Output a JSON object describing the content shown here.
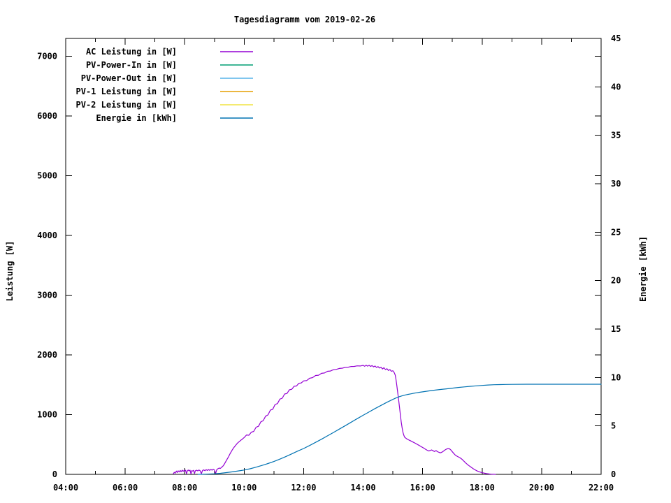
{
  "title": "Tagesdiagramm vom 2019-02-26",
  "chart_data": {
    "type": "line",
    "title": "Tagesdiagramm vom 2019-02-26",
    "grid": false,
    "background": "#ffffff",
    "legend_position": "top-left",
    "x": {
      "unit": "time-of-day",
      "range_hours": [
        4,
        22
      ],
      "major_ticks": [
        {
          "t": 4,
          "label": "04:00"
        },
        {
          "t": 6,
          "label": "06:00"
        },
        {
          "t": 8,
          "label": "08:00"
        },
        {
          "t": 10,
          "label": "10:00"
        },
        {
          "t": 12,
          "label": "12:00"
        },
        {
          "t": 14,
          "label": "14:00"
        },
        {
          "t": 16,
          "label": "16:00"
        },
        {
          "t": 18,
          "label": "18:00"
        },
        {
          "t": 20,
          "label": "20:00"
        },
        {
          "t": 22,
          "label": "22:00"
        }
      ],
      "minor_ticks": [
        5,
        7,
        9,
        11,
        13,
        15,
        17,
        19,
        21
      ]
    },
    "y1": {
      "label": "Leistung [W]",
      "range": [
        0,
        7300
      ],
      "ticks": [
        {
          "v": 0,
          "label": "0"
        },
        {
          "v": 1000,
          "label": "1000"
        },
        {
          "v": 2000,
          "label": "2000"
        },
        {
          "v": 3000,
          "label": "3000"
        },
        {
          "v": 4000,
          "label": "4000"
        },
        {
          "v": 5000,
          "label": "5000"
        },
        {
          "v": 6000,
          "label": "6000"
        },
        {
          "v": 7000,
          "label": "7000"
        }
      ]
    },
    "y2": {
      "label": "Energie [kWh]",
      "range": [
        0,
        45
      ],
      "ticks": [
        {
          "v": 0,
          "label": "0"
        },
        {
          "v": 5,
          "label": "5"
        },
        {
          "v": 10,
          "label": "10"
        },
        {
          "v": 15,
          "label": "15"
        },
        {
          "v": 20,
          "label": "20"
        },
        {
          "v": 25,
          "label": "25"
        },
        {
          "v": 30,
          "label": "30"
        },
        {
          "v": 35,
          "label": "35"
        },
        {
          "v": 40,
          "label": "40"
        },
        {
          "v": 45,
          "label": "45"
        }
      ]
    },
    "series": [
      {
        "name": "AC Leistung in [W]",
        "color": "#9400d3",
        "axis": "y1",
        "points": [
          [
            7.62,
            10
          ],
          [
            7.65,
            35
          ],
          [
            7.68,
            20
          ],
          [
            7.72,
            55
          ],
          [
            7.75,
            30
          ],
          [
            7.78,
            60
          ],
          [
            7.82,
            40
          ],
          [
            7.85,
            65
          ],
          [
            7.88,
            45
          ],
          [
            7.92,
            70
          ],
          [
            7.95,
            50
          ],
          [
            7.98,
            65
          ],
          [
            8.0,
            55
          ],
          [
            8.03,
            70
          ],
          [
            8.06,
            10
          ],
          [
            8.09,
            60
          ],
          [
            8.12,
            72
          ],
          [
            8.15,
            58
          ],
          [
            8.18,
            70
          ],
          [
            8.21,
            8
          ],
          [
            8.24,
            62
          ],
          [
            8.27,
            55
          ],
          [
            8.3,
            68
          ],
          [
            8.33,
            15
          ],
          [
            8.36,
            60
          ],
          [
            8.4,
            70
          ],
          [
            8.44,
            58
          ],
          [
            8.48,
            72
          ],
          [
            8.52,
            60
          ],
          [
            8.56,
            12
          ],
          [
            8.6,
            65
          ],
          [
            8.64,
            75
          ],
          [
            8.68,
            62
          ],
          [
            8.72,
            78
          ],
          [
            8.76,
            65
          ],
          [
            8.8,
            80
          ],
          [
            8.84,
            68
          ],
          [
            8.88,
            82
          ],
          [
            8.92,
            70
          ],
          [
            8.96,
            85
          ],
          [
            9.0,
            72
          ],
          [
            9.04,
            18
          ],
          [
            9.08,
            80
          ],
          [
            9.12,
            95
          ],
          [
            9.16,
            105
          ],
          [
            9.2,
            100
          ],
          [
            9.24,
            118
          ],
          [
            9.28,
            135
          ],
          [
            9.32,
            160
          ],
          [
            9.36,
            195
          ],
          [
            9.4,
            230
          ],
          [
            9.44,
            265
          ],
          [
            9.48,
            300
          ],
          [
            9.52,
            340
          ],
          [
            9.56,
            375
          ],
          [
            9.6,
            410
          ],
          [
            9.64,
            440
          ],
          [
            9.68,
            465
          ],
          [
            9.72,
            490
          ],
          [
            9.76,
            515
          ],
          [
            9.8,
            535
          ],
          [
            9.84,
            550
          ],
          [
            9.88,
            568
          ],
          [
            9.92,
            582
          ],
          [
            9.96,
            600
          ],
          [
            10.0,
            615
          ],
          [
            10.08,
            660
          ],
          [
            10.16,
            655
          ],
          [
            10.24,
            705
          ],
          [
            10.32,
            720
          ],
          [
            10.4,
            790
          ],
          [
            10.48,
            805
          ],
          [
            10.56,
            880
          ],
          [
            10.64,
            900
          ],
          [
            10.72,
            975
          ],
          [
            10.8,
            995
          ],
          [
            10.88,
            1075
          ],
          [
            10.96,
            1090
          ],
          [
            11.04,
            1170
          ],
          [
            11.12,
            1185
          ],
          [
            11.2,
            1260
          ],
          [
            11.28,
            1275
          ],
          [
            11.36,
            1345
          ],
          [
            11.44,
            1355
          ],
          [
            11.52,
            1415
          ],
          [
            11.6,
            1425
          ],
          [
            11.68,
            1475
          ],
          [
            11.76,
            1480
          ],
          [
            11.84,
            1525
          ],
          [
            11.92,
            1530
          ],
          [
            12.0,
            1565
          ],
          [
            12.1,
            1570
          ],
          [
            12.2,
            1610
          ],
          [
            12.3,
            1620
          ],
          [
            12.4,
            1655
          ],
          [
            12.5,
            1660
          ],
          [
            12.6,
            1692
          ],
          [
            12.7,
            1698
          ],
          [
            12.8,
            1725
          ],
          [
            12.9,
            1730
          ],
          [
            13.0,
            1752
          ],
          [
            13.1,
            1758
          ],
          [
            13.2,
            1774
          ],
          [
            13.3,
            1778
          ],
          [
            13.4,
            1792
          ],
          [
            13.5,
            1795
          ],
          [
            13.6,
            1806
          ],
          [
            13.7,
            1808
          ],
          [
            13.8,
            1817
          ],
          [
            13.9,
            1815
          ],
          [
            14.0,
            1825
          ],
          [
            14.05,
            1810
          ],
          [
            14.1,
            1828
          ],
          [
            14.15,
            1812
          ],
          [
            14.2,
            1826
          ],
          [
            14.25,
            1808
          ],
          [
            14.3,
            1822
          ],
          [
            14.35,
            1800
          ],
          [
            14.4,
            1815
          ],
          [
            14.45,
            1790
          ],
          [
            14.5,
            1805
          ],
          [
            14.55,
            1780
          ],
          [
            14.6,
            1795
          ],
          [
            14.65,
            1765
          ],
          [
            14.7,
            1785
          ],
          [
            14.75,
            1755
          ],
          [
            14.8,
            1770
          ],
          [
            14.85,
            1740
          ],
          [
            14.9,
            1755
          ],
          [
            14.95,
            1725
          ],
          [
            15.0,
            1735
          ],
          [
            15.05,
            1700
          ],
          [
            15.08,
            1660
          ],
          [
            15.1,
            1600
          ],
          [
            15.13,
            1500
          ],
          [
            15.16,
            1380
          ],
          [
            15.19,
            1260
          ],
          [
            15.22,
            1130
          ],
          [
            15.25,
            1000
          ],
          [
            15.28,
            880
          ],
          [
            15.31,
            780
          ],
          [
            15.34,
            700
          ],
          [
            15.37,
            650
          ],
          [
            15.4,
            620
          ],
          [
            15.45,
            600
          ],
          [
            15.5,
            585
          ],
          [
            15.55,
            572
          ],
          [
            15.6,
            560
          ],
          [
            15.65,
            548
          ],
          [
            15.7,
            535
          ],
          [
            15.75,
            522
          ],
          [
            15.8,
            508
          ],
          [
            15.85,
            494
          ],
          [
            15.9,
            480
          ],
          [
            15.95,
            465
          ],
          [
            16.0,
            450
          ],
          [
            16.05,
            435
          ],
          [
            16.1,
            420
          ],
          [
            16.15,
            405
          ],
          [
            16.2,
            392
          ],
          [
            16.25,
            398
          ],
          [
            16.3,
            410
          ],
          [
            16.35,
            396
          ],
          [
            16.4,
            382
          ],
          [
            16.45,
            398
          ],
          [
            16.5,
            380
          ],
          [
            16.55,
            368
          ],
          [
            16.6,
            360
          ],
          [
            16.65,
            372
          ],
          [
            16.7,
            390
          ],
          [
            16.75,
            408
          ],
          [
            16.8,
            422
          ],
          [
            16.85,
            432
          ],
          [
            16.9,
            428
          ],
          [
            16.95,
            408
          ],
          [
            17.0,
            378
          ],
          [
            17.05,
            348
          ],
          [
            17.1,
            322
          ],
          [
            17.15,
            305
          ],
          [
            17.2,
            292
          ],
          [
            17.25,
            280
          ],
          [
            17.3,
            262
          ],
          [
            17.35,
            240
          ],
          [
            17.4,
            215
          ],
          [
            17.45,
            190
          ],
          [
            17.5,
            168
          ],
          [
            17.55,
            148
          ],
          [
            17.6,
            130
          ],
          [
            17.65,
            112
          ],
          [
            17.7,
            95
          ],
          [
            17.75,
            80
          ],
          [
            17.8,
            66
          ],
          [
            17.85,
            54
          ],
          [
            17.9,
            44
          ],
          [
            17.95,
            36
          ],
          [
            18.0,
            28
          ],
          [
            18.05,
            22
          ],
          [
            18.1,
            17
          ],
          [
            18.15,
            12
          ],
          [
            18.2,
            9
          ],
          [
            18.25,
            6
          ],
          [
            18.3,
            4
          ],
          [
            18.35,
            2
          ],
          [
            18.4,
            1
          ],
          [
            18.45,
            0
          ]
        ]
      },
      {
        "name": "PV-Power-In in [W]",
        "color": "#009e73",
        "axis": "y1",
        "points": []
      },
      {
        "name": "PV-Power-Out in [W]",
        "color": "#56b4e9",
        "axis": "y1",
        "points": []
      },
      {
        "name": "PV-1 Leistung in [W]",
        "color": "#e69f00",
        "axis": "y1",
        "points": []
      },
      {
        "name": "PV-2 Leistung in [W]",
        "color": "#f0e442",
        "axis": "y1",
        "points": []
      },
      {
        "name": "Energie in [kWh]",
        "color": "#0072b2",
        "axis": "y2",
        "points": [
          [
            8.45,
            0
          ],
          [
            8.7,
            0.02
          ],
          [
            9.0,
            0.06
          ],
          [
            9.2,
            0.11
          ],
          [
            9.4,
            0.18
          ],
          [
            9.6,
            0.26
          ],
          [
            9.8,
            0.35
          ],
          [
            10.0,
            0.45
          ],
          [
            10.2,
            0.58
          ],
          [
            10.4,
            0.74
          ],
          [
            10.6,
            0.92
          ],
          [
            10.8,
            1.12
          ],
          [
            11.0,
            1.33
          ],
          [
            11.2,
            1.57
          ],
          [
            11.4,
            1.83
          ],
          [
            11.6,
            2.11
          ],
          [
            11.8,
            2.4
          ],
          [
            12.0,
            2.67
          ],
          [
            12.2,
            2.98
          ],
          [
            12.4,
            3.3
          ],
          [
            12.6,
            3.63
          ],
          [
            12.8,
            3.97
          ],
          [
            13.0,
            4.32
          ],
          [
            13.2,
            4.67
          ],
          [
            13.4,
            5.03
          ],
          [
            13.6,
            5.39
          ],
          [
            13.8,
            5.75
          ],
          [
            14.0,
            6.1
          ],
          [
            14.2,
            6.45
          ],
          [
            14.4,
            6.79
          ],
          [
            14.6,
            7.12
          ],
          [
            14.8,
            7.44
          ],
          [
            15.0,
            7.74
          ],
          [
            15.1,
            7.88
          ],
          [
            15.2,
            8.0
          ],
          [
            15.3,
            8.1
          ],
          [
            15.4,
            8.18
          ],
          [
            15.5,
            8.25
          ],
          [
            15.6,
            8.31
          ],
          [
            15.7,
            8.37
          ],
          [
            15.8,
            8.42
          ],
          [
            15.9,
            8.47
          ],
          [
            16.0,
            8.52
          ],
          [
            16.2,
            8.61
          ],
          [
            16.4,
            8.69
          ],
          [
            16.6,
            8.76
          ],
          [
            16.8,
            8.83
          ],
          [
            17.0,
            8.9
          ],
          [
            17.2,
            8.97
          ],
          [
            17.4,
            9.03
          ],
          [
            17.6,
            9.09
          ],
          [
            17.8,
            9.14
          ],
          [
            18.0,
            9.18
          ],
          [
            18.2,
            9.22
          ],
          [
            18.4,
            9.25
          ],
          [
            18.6,
            9.27
          ],
          [
            18.8,
            9.28
          ],
          [
            19.0,
            9.29
          ],
          [
            19.5,
            9.3
          ],
          [
            20.0,
            9.3
          ],
          [
            21.0,
            9.3
          ],
          [
            22.0,
            9.3
          ]
        ]
      }
    ]
  }
}
